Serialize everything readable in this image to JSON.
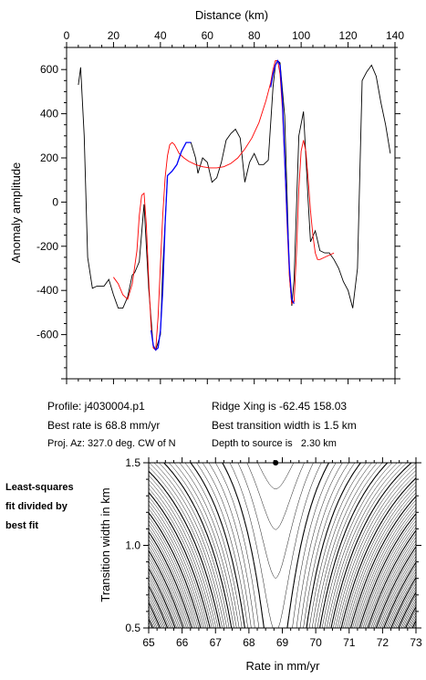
{
  "chart_data": [
    {
      "type": "line",
      "title": "",
      "xlabel": "Distance (km)",
      "ylabel": "Anomaly amplitude",
      "xlim": [
        0,
        140
      ],
      "ylim": [
        -800,
        700
      ],
      "x_axis_position": "top",
      "x_ticks": [
        "0",
        "20",
        "40",
        "60",
        "80",
        "100",
        "120",
        "140"
      ],
      "y_ticks": [
        "600",
        "400",
        "200",
        "0",
        "-200",
        "-400",
        "-600"
      ],
      "grid": false,
      "legend": "none",
      "series": [
        {
          "color": "#000000",
          "x": [
            5,
            6,
            7.5,
            9,
            11,
            13,
            16,
            18,
            20,
            22,
            24,
            26,
            28,
            29,
            31,
            33,
            35,
            37,
            38,
            40,
            41,
            43,
            45,
            47,
            49,
            51,
            53,
            55,
            56,
            58,
            60,
            62,
            64,
            66,
            68,
            70,
            72,
            74,
            76,
            78,
            80,
            82,
            84,
            86,
            88,
            89,
            90,
            91,
            93,
            95,
            96,
            97,
            99,
            101,
            103,
            104,
            106,
            108,
            110,
            112,
            114,
            116,
            118,
            120,
            122,
            124,
            126,
            128,
            130,
            132,
            134,
            136,
            138
          ],
          "y": [
            530,
            610,
            300,
            -250,
            -390,
            -380,
            -380,
            -350,
            -420,
            -480,
            -480,
            -430,
            -330,
            -320,
            -270,
            -10,
            -390,
            -660,
            -670,
            -600,
            -300,
            120,
            140,
            170,
            230,
            270,
            270,
            200,
            130,
            200,
            180,
            90,
            110,
            180,
            280,
            310,
            330,
            290,
            90,
            180,
            220,
            170,
            170,
            190,
            520,
            620,
            640,
            630,
            390,
            -330,
            -470,
            -350,
            300,
            410,
            0,
            -180,
            -130,
            -220,
            -230,
            -230,
            -260,
            -300,
            -360,
            -400,
            -480,
            -300,
            550,
            590,
            620,
            570,
            450,
            350,
            220
          ]
        },
        {
          "color": "#ff0000",
          "x": [
            20,
            22,
            24,
            26,
            28,
            30,
            31,
            32,
            33,
            34,
            35,
            36,
            37,
            38,
            39,
            40,
            41,
            42,
            43,
            44,
            45,
            46,
            47,
            48,
            50,
            52,
            55,
            58,
            61,
            64,
            67,
            70,
            73,
            76,
            79,
            82,
            85,
            87,
            88,
            89,
            90,
            91,
            92,
            93,
            94,
            95,
            96,
            97,
            98,
            99,
            100,
            101,
            102,
            103,
            104,
            105,
            106,
            107,
            108,
            110,
            112,
            114
          ],
          "y": [
            -340,
            -370,
            -420,
            -440,
            -370,
            -220,
            -60,
            30,
            40,
            -100,
            -350,
            -560,
            -660,
            -670,
            -520,
            -280,
            -60,
            110,
            210,
            260,
            270,
            260,
            240,
            220,
            200,
            185,
            170,
            160,
            155,
            155,
            160,
            175,
            200,
            240,
            290,
            360,
            460,
            540,
            600,
            640,
            640,
            580,
            420,
            180,
            -100,
            -340,
            -460,
            -450,
            -230,
            60,
            230,
            280,
            230,
            100,
            -40,
            -150,
            -230,
            -260,
            -260,
            -250,
            -240,
            -230
          ]
        },
        {
          "color": "#0000ff",
          "x": [
            36,
            37,
            38,
            39,
            40,
            41,
            42,
            43,
            45,
            47,
            49,
            51,
            53,
            87,
            88,
            89,
            90,
            91,
            92,
            93,
            94,
            95,
            96,
            97
          ],
          "y": [
            -580,
            -650,
            -670,
            -660,
            -580,
            -400,
            -100,
            120,
            140,
            170,
            230,
            270,
            270,
            520,
            580,
            620,
            640,
            620,
            460,
            200,
            -60,
            -300,
            -440,
            -460
          ]
        }
      ]
    },
    {
      "type": "contour",
      "xlabel": "Rate in mm/yr",
      "ylabel": "Transition width in km",
      "xlim": [
        65,
        73
      ],
      "ylim": [
        0.5,
        1.5
      ],
      "x_ticks": [
        "65",
        "66",
        "67",
        "68",
        "69",
        "70",
        "71",
        "72",
        "73"
      ],
      "y_ticks": [
        "0.5",
        "1.0",
        "1.5"
      ],
      "best_fit_marker": {
        "rate": 68.8,
        "width": 1.5
      },
      "grid": false
    }
  ],
  "info": {
    "profile": "Profile: j4030004.p1",
    "best_rate": "Best rate is 68.8 mm/yr",
    "proj_az": "Proj. Az: 327.0 deg. CW of N",
    "ridge_xing": "Ridge Xing is -62.45 158.03",
    "best_width": "Best transition width is 1.5 km",
    "depth": "Depth to source is   2.30 km"
  },
  "side_note": {
    "line1": "Least-squares",
    "line2": "fit divided by",
    "line3": "best fit"
  }
}
